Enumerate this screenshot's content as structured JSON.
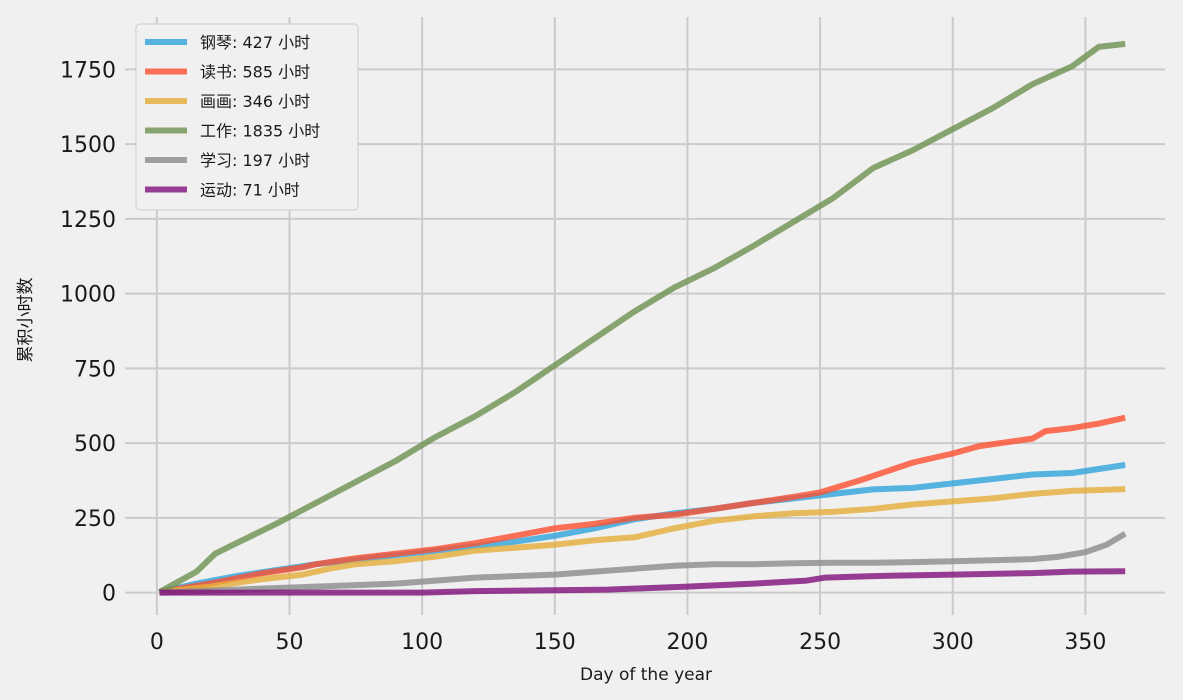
{
  "chart_data": {
    "type": "line",
    "title": "",
    "xlabel": "Day of the year",
    "ylabel": "累积小时数",
    "xlim": [
      -12,
      380
    ],
    "ylim": [
      -75,
      1925
    ],
    "xticks": [
      0,
      50,
      100,
      150,
      200,
      250,
      300,
      350
    ],
    "yticks": [
      0,
      250,
      500,
      750,
      1000,
      1250,
      1500,
      1750
    ],
    "grid": true,
    "legend_position": "top-left",
    "series": [
      {
        "name": "钢琴: 427 小时",
        "color": "#30a2da",
        "x": [
          1,
          15,
          30,
          45,
          60,
          75,
          90,
          105,
          120,
          135,
          150,
          165,
          180,
          195,
          210,
          225,
          240,
          255,
          270,
          285,
          300,
          315,
          330,
          345,
          360,
          365
        ],
        "y": [
          2,
          30,
          55,
          75,
          95,
          110,
          125,
          140,
          155,
          170,
          190,
          215,
          245,
          265,
          280,
          300,
          315,
          330,
          345,
          350,
          365,
          380,
          395,
          400,
          420,
          427
        ]
      },
      {
        "name": "读书: 585 小时",
        "color": "#fc4f30",
        "x": [
          1,
          20,
          40,
          55,
          60,
          75,
          90,
          105,
          120,
          135,
          150,
          165,
          180,
          195,
          210,
          225,
          240,
          250,
          265,
          285,
          300,
          310,
          330,
          335,
          345,
          355,
          365
        ],
        "y": [
          2,
          30,
          65,
          85,
          95,
          115,
          130,
          145,
          165,
          190,
          215,
          230,
          250,
          260,
          280,
          300,
          320,
          335,
          375,
          435,
          465,
          490,
          515,
          540,
          550,
          565,
          585
        ]
      },
      {
        "name": "画画: 346 小时",
        "color": "#e5ae38",
        "x": [
          1,
          20,
          40,
          55,
          65,
          75,
          90,
          105,
          120,
          135,
          150,
          165,
          180,
          195,
          210,
          225,
          240,
          255,
          270,
          285,
          300,
          315,
          330,
          345,
          365
        ],
        "y": [
          2,
          20,
          45,
          60,
          80,
          95,
          105,
          120,
          140,
          150,
          160,
          175,
          185,
          215,
          240,
          255,
          265,
          270,
          280,
          295,
          305,
          315,
          330,
          340,
          346
        ]
      },
      {
        "name": "工作: 1835 小时",
        "color": "#6d904f",
        "x": [
          1,
          15,
          22,
          30,
          45,
          60,
          75,
          90,
          105,
          120,
          135,
          150,
          165,
          180,
          195,
          210,
          225,
          240,
          255,
          270,
          285,
          300,
          315,
          330,
          345,
          355,
          365
        ],
        "y": [
          2,
          70,
          130,
          165,
          230,
          300,
          370,
          440,
          520,
          590,
          670,
          760,
          850,
          940,
          1020,
          1085,
          1160,
          1240,
          1320,
          1420,
          1480,
          1550,
          1620,
          1700,
          1760,
          1825,
          1835
        ]
      },
      {
        "name": "学习: 197 小时",
        "color": "#8b8b8b",
        "x": [
          1,
          30,
          60,
          75,
          90,
          105,
          120,
          135,
          150,
          165,
          180,
          195,
          210,
          225,
          240,
          255,
          270,
          285,
          300,
          315,
          330,
          340,
          350,
          358,
          365
        ],
        "y": [
          0,
          10,
          20,
          25,
          30,
          40,
          50,
          55,
          60,
          70,
          80,
          90,
          95,
          95,
          98,
          100,
          100,
          102,
          105,
          108,
          112,
          120,
          135,
          160,
          197
        ]
      },
      {
        "name": "运动: 71 小时",
        "color": "#810f7c",
        "x": [
          1,
          50,
          100,
          120,
          150,
          170,
          185,
          200,
          225,
          235,
          245,
          252,
          270,
          300,
          330,
          345,
          365
        ],
        "y": [
          0,
          0,
          0,
          5,
          8,
          10,
          15,
          20,
          30,
          35,
          40,
          50,
          55,
          60,
          65,
          70,
          71
        ]
      }
    ]
  }
}
